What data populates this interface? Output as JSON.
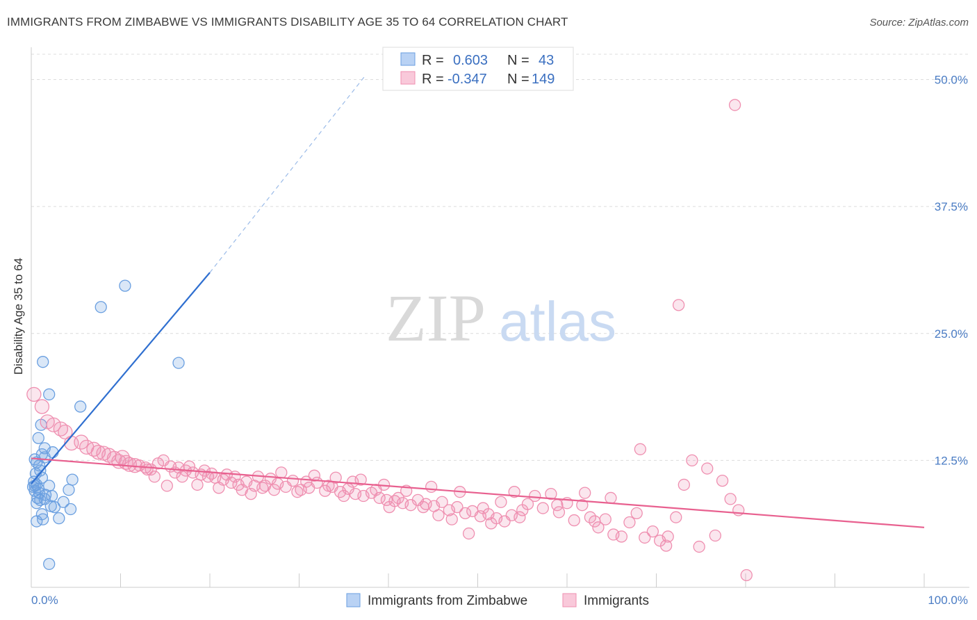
{
  "title": "IMMIGRANTS FROM ZIMBABWE VS IMMIGRANTS DISABILITY AGE 35 TO 64 CORRELATION CHART",
  "source": "Source: ZipAtlas.com",
  "watermark": {
    "zip": "ZIP",
    "atlas": "atlas"
  },
  "colors": {
    "blue": "#6a9fe0",
    "blue_line": "#2f6fd0",
    "pink": "#ef8fb0",
    "pink_line": "#e8608f",
    "grid": "#dcdcdc",
    "label": "#4a7cc4"
  },
  "legend": {
    "rows": [
      {
        "r_label": "R =",
        "r_value": "0.603",
        "n_label": "N =",
        "n_value": "43",
        "color": "blue"
      },
      {
        "r_label": "R =",
        "r_value": "-0.347",
        "n_label": "N =",
        "n_value": "149",
        "color": "pink"
      }
    ]
  },
  "bottom_legend": [
    "Immigrants from Zimbabwe",
    "Immigrants"
  ],
  "chart_data": {
    "type": "scatter",
    "title": "IMMIGRANTS FROM ZIMBABWE VS IMMIGRANTS DISABILITY AGE 35 TO 64 CORRELATION CHART",
    "xlabel": "",
    "ylabel": "Disability Age 35 to 64",
    "xlim": [
      0,
      100
    ],
    "ylim": [
      0,
      52.5
    ],
    "x_ticks": [
      "0.0%",
      "100.0%"
    ],
    "y_ticks": [
      {
        "v": 12.5,
        "label": "12.5%"
      },
      {
        "v": 25.0,
        "label": "25.0%"
      },
      {
        "v": 37.5,
        "label": "37.5%"
      },
      {
        "v": 50.0,
        "label": "50.0%"
      }
    ],
    "grid": true,
    "legend_position": "top-center",
    "series": [
      {
        "name": "Immigrants from Zimbabwe",
        "color": "blue",
        "trend": {
          "x": [
            0.0,
            20.0
          ],
          "y": [
            10.2,
            31.0
          ],
          "dashed_to": [
            37.5,
            50.5
          ]
        },
        "points": [
          [
            10.5,
            29.7
          ],
          [
            7.8,
            27.6
          ],
          [
            16.5,
            22.1
          ],
          [
            1.3,
            22.2
          ],
          [
            2.0,
            19.0
          ],
          [
            5.5,
            17.8
          ],
          [
            1.1,
            16.0
          ],
          [
            0.8,
            14.7
          ],
          [
            1.5,
            13.7
          ],
          [
            2.4,
            13.3
          ],
          [
            1.2,
            13.1
          ],
          [
            0.4,
            12.6
          ],
          [
            0.6,
            12.3
          ],
          [
            1.5,
            12.8
          ],
          [
            0.9,
            12.0
          ],
          [
            1.0,
            11.5
          ],
          [
            0.5,
            11.2
          ],
          [
            1.2,
            10.8
          ],
          [
            4.6,
            10.6
          ],
          [
            0.3,
            10.4
          ],
          [
            0.6,
            10.1
          ],
          [
            2.0,
            10.0
          ],
          [
            0.2,
            9.9
          ],
          [
            0.8,
            9.7
          ],
          [
            0.4,
            9.5
          ],
          [
            0.9,
            9.3
          ],
          [
            4.2,
            9.6
          ],
          [
            1.6,
            9.1
          ],
          [
            2.3,
            9.0
          ],
          [
            0.7,
            8.8
          ],
          [
            1.0,
            8.6
          ],
          [
            1.5,
            8.7
          ],
          [
            0.6,
            8.3
          ],
          [
            3.6,
            8.4
          ],
          [
            2.2,
            8.0
          ],
          [
            2.6,
            7.9
          ],
          [
            4.4,
            7.7
          ],
          [
            1.2,
            7.2
          ],
          [
            3.1,
            6.8
          ],
          [
            1.3,
            6.7
          ],
          [
            0.6,
            6.5
          ],
          [
            2.0,
            2.3
          ],
          [
            0.4,
            10.0
          ]
        ]
      },
      {
        "name": "Immigrants",
        "color": "pink",
        "trend": {
          "x": [
            0.0,
            100.0
          ],
          "y": [
            12.7,
            5.9
          ]
        },
        "points": [
          [
            78.8,
            47.5
          ],
          [
            72.5,
            27.8
          ],
          [
            0.3,
            19.0
          ],
          [
            1.2,
            17.8
          ],
          [
            1.8,
            16.3
          ],
          [
            2.5,
            16.0
          ],
          [
            3.3,
            15.6
          ],
          [
            3.8,
            15.3
          ],
          [
            4.5,
            14.2
          ],
          [
            5.6,
            14.3
          ],
          [
            6.2,
            13.8
          ],
          [
            7.0,
            13.6
          ],
          [
            7.5,
            13.3
          ],
          [
            8.1,
            13.2
          ],
          [
            8.7,
            13.0
          ],
          [
            9.3,
            12.7
          ],
          [
            10.2,
            12.8
          ],
          [
            9.8,
            12.4
          ],
          [
            11.0,
            12.1
          ],
          [
            12.1,
            12.0
          ],
          [
            12.8,
            11.8
          ],
          [
            13.4,
            11.6
          ],
          [
            14.2,
            12.2
          ],
          [
            14.8,
            12.5
          ],
          [
            15.6,
            11.9
          ],
          [
            16.5,
            11.8
          ],
          [
            17.3,
            11.5
          ],
          [
            18.1,
            11.3
          ],
          [
            19.0,
            11.1
          ],
          [
            19.8,
            10.9
          ],
          [
            20.6,
            10.8
          ],
          [
            21.5,
            10.6
          ],
          [
            22.4,
            10.3
          ],
          [
            23.2,
            10.1
          ],
          [
            24.1,
            10.4
          ],
          [
            25.0,
            10.0
          ],
          [
            25.9,
            9.8
          ],
          [
            26.8,
            10.7
          ],
          [
            27.6,
            10.2
          ],
          [
            28.5,
            9.9
          ],
          [
            29.3,
            10.5
          ],
          [
            30.2,
            9.6
          ],
          [
            31.1,
            9.8
          ],
          [
            32.0,
            10.3
          ],
          [
            32.9,
            9.5
          ],
          [
            33.7,
            9.9
          ],
          [
            34.6,
            9.4
          ],
          [
            35.5,
            9.7
          ],
          [
            36.3,
            9.2
          ],
          [
            37.2,
            9.0
          ],
          [
            38.1,
            9.3
          ],
          [
            39.0,
            8.8
          ],
          [
            39.8,
            8.6
          ],
          [
            40.7,
            8.5
          ],
          [
            41.6,
            8.3
          ],
          [
            42.5,
            8.1
          ],
          [
            43.3,
            8.6
          ],
          [
            44.2,
            8.2
          ],
          [
            45.1,
            8.0
          ],
          [
            46.0,
            8.4
          ],
          [
            46.8,
            7.6
          ],
          [
            47.7,
            7.9
          ],
          [
            48.6,
            7.3
          ],
          [
            49.4,
            7.5
          ],
          [
            50.3,
            7.0
          ],
          [
            51.2,
            7.2
          ],
          [
            52.1,
            6.8
          ],
          [
            53.0,
            6.5
          ],
          [
            53.8,
            7.1
          ],
          [
            54.7,
            6.9
          ],
          [
            55.6,
            8.2
          ],
          [
            56.4,
            9.0
          ],
          [
            57.3,
            7.8
          ],
          [
            58.2,
            9.2
          ],
          [
            59.1,
            7.4
          ],
          [
            60.0,
            8.3
          ],
          [
            60.8,
            6.6
          ],
          [
            61.7,
            8.1
          ],
          [
            62.6,
            6.9
          ],
          [
            63.5,
            5.9
          ],
          [
            64.3,
            6.7
          ],
          [
            65.2,
            5.2
          ],
          [
            66.1,
            5.0
          ],
          [
            67.0,
            6.4
          ],
          [
            67.8,
            7.3
          ],
          [
            68.7,
            4.9
          ],
          [
            69.6,
            5.5
          ],
          [
            70.4,
            4.6
          ],
          [
            71.3,
            5.0
          ],
          [
            72.2,
            6.9
          ],
          [
            73.1,
            10.1
          ],
          [
            74.0,
            12.5
          ],
          [
            74.8,
            4.0
          ],
          [
            75.7,
            11.7
          ],
          [
            76.6,
            5.1
          ],
          [
            77.4,
            10.5
          ],
          [
            78.3,
            8.7
          ],
          [
            79.2,
            7.6
          ],
          [
            80.1,
            1.2
          ],
          [
            68.2,
            13.6
          ],
          [
            71.1,
            4.1
          ],
          [
            58.9,
            8.1
          ],
          [
            62.0,
            9.3
          ],
          [
            64.9,
            8.8
          ],
          [
            63.1,
            6.5
          ],
          [
            55.0,
            7.6
          ],
          [
            54.1,
            9.4
          ],
          [
            52.6,
            8.4
          ],
          [
            51.5,
            6.3
          ],
          [
            50.6,
            7.8
          ],
          [
            49.0,
            5.3
          ],
          [
            48.0,
            9.4
          ],
          [
            47.1,
            6.7
          ],
          [
            45.6,
            7.1
          ],
          [
            44.8,
            9.9
          ],
          [
            43.9,
            7.9
          ],
          [
            42.0,
            9.5
          ],
          [
            41.1,
            8.8
          ],
          [
            40.1,
            7.9
          ],
          [
            39.5,
            10.1
          ],
          [
            38.6,
            9.6
          ],
          [
            36.9,
            10.6
          ],
          [
            36.0,
            10.4
          ],
          [
            35.0,
            9.0
          ],
          [
            34.1,
            10.8
          ],
          [
            33.3,
            10.0
          ],
          [
            31.7,
            11.0
          ],
          [
            30.8,
            10.4
          ],
          [
            29.8,
            9.4
          ],
          [
            28.0,
            11.3
          ],
          [
            27.2,
            9.6
          ],
          [
            26.2,
            10.0
          ],
          [
            25.4,
            10.9
          ],
          [
            24.6,
            9.2
          ],
          [
            23.6,
            9.6
          ],
          [
            22.8,
            10.9
          ],
          [
            21.9,
            11.1
          ],
          [
            21.0,
            9.8
          ],
          [
            20.2,
            11.2
          ],
          [
            19.4,
            11.5
          ],
          [
            18.6,
            10.1
          ],
          [
            17.7,
            11.9
          ],
          [
            16.9,
            10.9
          ],
          [
            16.1,
            11.3
          ],
          [
            15.2,
            10.0
          ],
          [
            13.8,
            10.9
          ],
          [
            13.0,
            11.6
          ],
          [
            11.6,
            12.0
          ],
          [
            10.6,
            12.3
          ]
        ]
      }
    ]
  }
}
